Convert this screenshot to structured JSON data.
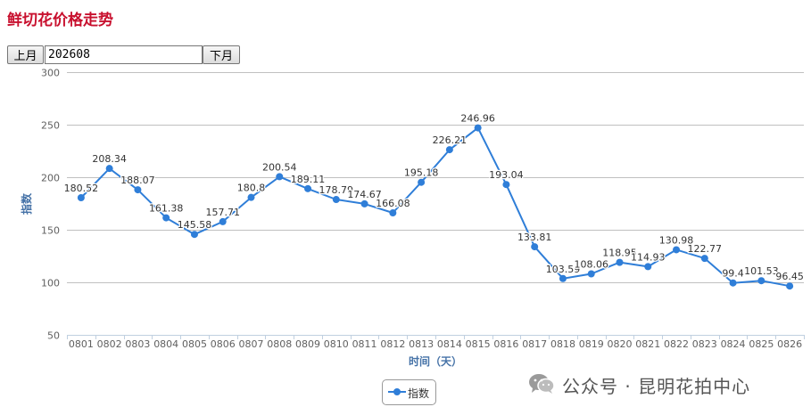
{
  "page": {
    "title": "鲜切花价格走势"
  },
  "nav": {
    "prev_label": "上月",
    "next_label": "下月",
    "month_value": "202608"
  },
  "legend": {
    "label": "指数"
  },
  "watermark": {
    "text": "公众号 · 昆明花拍中心",
    "icon": "wechat-icon"
  },
  "colors": {
    "title": "#c8102e",
    "series": "#2f7ed8",
    "axis_title": "#4572a7"
  },
  "chart_data": {
    "type": "line",
    "title": "",
    "xlabel": "时间（天）",
    "ylabel": "指数",
    "ylim": [
      50,
      300
    ],
    "yticks": [
      50,
      100,
      150,
      200,
      250,
      300
    ],
    "grid": true,
    "legend": "bottom-center",
    "categories": [
      "0801",
      "0802",
      "0803",
      "0804",
      "0805",
      "0806",
      "0807",
      "0808",
      "0809",
      "0810",
      "0811",
      "0812",
      "0813",
      "0814",
      "0815",
      "0816",
      "0817",
      "0818",
      "0819",
      "0820",
      "0821",
      "0822",
      "0823",
      "0824",
      "0825",
      "0826"
    ],
    "series": [
      {
        "name": "指数",
        "values": [
          180.52,
          208.34,
          188.07,
          161.38,
          145.58,
          157.71,
          180.8,
          200.54,
          189.11,
          178.79,
          174.67,
          166.08,
          195.18,
          226.21,
          246.96,
          193.04,
          133.81,
          103.59,
          108.06,
          118.95,
          114.93,
          130.98,
          122.77,
          99.4,
          101.53,
          96.45
        ],
        "labels": [
          "180.52",
          "208.34",
          "188.07",
          "161.38",
          "145.58",
          "157.71",
          "180.8",
          "200.54",
          "189.11",
          "178.79",
          "174.67",
          "166.08",
          "195.18",
          "226.21",
          "246.96",
          "193.04",
          "133.81",
          "103.59",
          "108.06",
          "118.95",
          "114.93",
          "130.98",
          "122.77",
          "99.4",
          "101.53",
          "96.45"
        ]
      }
    ]
  }
}
